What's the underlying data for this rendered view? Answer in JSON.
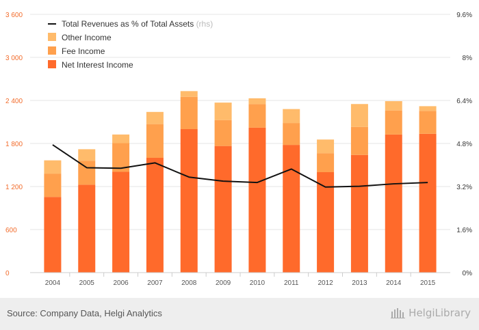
{
  "chart_data": {
    "type": "bar",
    "stacked": true,
    "categories": [
      "2004",
      "2005",
      "2006",
      "2007",
      "2008",
      "2009",
      "2010",
      "2011",
      "2012",
      "2013",
      "2014",
      "2015"
    ],
    "series": [
      {
        "name": "Net Interest Income",
        "color": "#ff6a2b",
        "values": [
          1055,
          1225,
          1405,
          1600,
          2000,
          1765,
          2020,
          1780,
          1400,
          1640,
          1925,
          1935
        ]
      },
      {
        "name": "Fee Income",
        "color": "#ffa04d",
        "values": [
          325,
          335,
          400,
          470,
          450,
          360,
          330,
          305,
          265,
          390,
          335,
          320
        ]
      },
      {
        "name": "Other Income",
        "color": "#ffbb6b",
        "values": [
          185,
          160,
          120,
          170,
          80,
          245,
          80,
          195,
          190,
          320,
          130,
          65
        ]
      }
    ],
    "line": {
      "name": "Total Revenues as % of Total Assets",
      "axis_note": "(rhs)",
      "color": "#111111",
      "values": [
        4.75,
        3.9,
        3.88,
        4.08,
        3.55,
        3.4,
        3.35,
        3.85,
        3.18,
        3.21,
        3.3,
        3.35
      ]
    },
    "y_left": {
      "ylim": [
        0,
        3600
      ],
      "ticks": [
        "0",
        "600",
        "1 200",
        "1 800",
        "2 400",
        "3 000",
        "3 600"
      ],
      "color": "#f26b2a"
    },
    "y_right": {
      "ylim": [
        0,
        9.6
      ],
      "ticks": [
        "0%",
        "1.6%",
        "3.2%",
        "4.8%",
        "6.4%",
        "8%",
        "9.6%"
      ]
    },
    "grid": true,
    "legend_position": "top-left"
  },
  "footer": {
    "source": "Source: Company Data, Helgi Analytics",
    "brand": "HelgiLibrary"
  }
}
